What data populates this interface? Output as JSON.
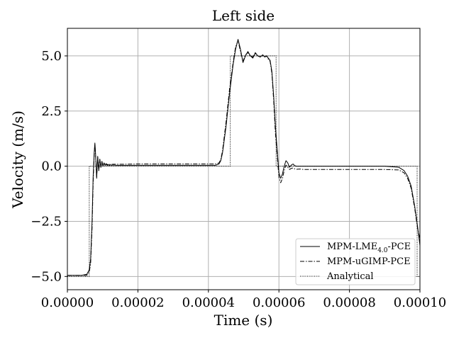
{
  "chart_data": {
    "type": "line",
    "title": "Left side",
    "xlabel": "Time (s)",
    "ylabel": "Velocity (m/s)",
    "xlim": [
      0,
      0.0001
    ],
    "ylim": [
      -5.6,
      6.25
    ],
    "xticks": [
      0,
      2e-05,
      4e-05,
      6e-05,
      8e-05,
      0.0001
    ],
    "xtick_labels": [
      "0.00000",
      "0.00002",
      "0.00004",
      "0.00006",
      "0.00008",
      "0.00010"
    ],
    "yticks": [
      -5.0,
      -2.5,
      0.0,
      2.5,
      5.0
    ],
    "ytick_labels": [
      "−5.0",
      "−2.5",
      "0.0",
      "2.5",
      "5.0"
    ],
    "grid": true,
    "legend_position": "lower-right",
    "series": [
      {
        "name": "MPM-LME4.0-PCE",
        "name_main": "MPM-LME",
        "name_sub": "4.0",
        "name_tail": "-PCE",
        "style": "solid",
        "color": "#000000",
        "x": [
          0,
          4e-06,
          5.5e-06,
          6.2e-06,
          6.6e-06,
          7e-06,
          7.3e-06,
          7.6e-06,
          7.8e-06,
          8e-06,
          8.3e-06,
          8.6e-06,
          8.9e-06,
          9.2e-06,
          9.5e-06,
          9.8e-06,
          1.01e-05,
          1.04e-05,
          1.07e-05,
          1.1e-05,
          1.13e-05,
          1.16e-05,
          1.19e-05,
          1.22e-05,
          1.25e-05,
          1.3e-05,
          1.4e-05,
          1.6e-05,
          2e-05,
          3e-05,
          4.2e-05,
          4.3e-05,
          4.35e-05,
          4.4e-05,
          4.5e-05,
          4.6e-05,
          4.7e-05,
          4.77e-05,
          4.84e-05,
          4.91e-05,
          4.98e-05,
          5.05e-05,
          5.12e-05,
          5.19e-05,
          5.26e-05,
          5.33e-05,
          5.4e-05,
          5.47e-05,
          5.54e-05,
          5.6e-05,
          5.65e-05,
          5.7e-05,
          5.75e-05,
          5.8e-05,
          5.85e-05,
          5.9e-05,
          6e-05,
          6.05e-05,
          6.1e-05,
          6.15e-05,
          6.2e-05,
          6.25e-05,
          6.3e-05,
          6.35e-05,
          6.4e-05,
          6.45e-05,
          6.5e-05,
          6.6e-05,
          6.7e-05,
          7e-05,
          8e-05,
          9e-05,
          9.4e-05,
          9.55e-05,
          9.65e-05,
          9.75e-05,
          9.85e-05,
          9.93e-05,
          0.0001
        ],
        "y": [
          -4.95,
          -4.95,
          -4.9,
          -4.7,
          -4.2,
          -2.5,
          -0.5,
          0.6,
          1.05,
          0.55,
          -0.55,
          0.45,
          -0.2,
          0.32,
          -0.05,
          0.22,
          0.0,
          0.15,
          0.03,
          0.1,
          0.03,
          0.07,
          0.03,
          0.06,
          0.04,
          0.05,
          0.04,
          0.04,
          0.04,
          0.04,
          0.04,
          0.1,
          0.25,
          0.6,
          1.8,
          3.3,
          4.6,
          5.3,
          5.75,
          5.3,
          4.7,
          5.0,
          5.2,
          5.0,
          4.9,
          5.15,
          5.0,
          4.95,
          5.05,
          4.95,
          5.0,
          4.9,
          4.8,
          4.3,
          3.2,
          1.8,
          -0.3,
          -0.55,
          -0.35,
          0.0,
          0.25,
          0.15,
          -0.05,
          0.05,
          0.1,
          0.02,
          0.0,
          0.0,
          0.0,
          0.0,
          0.0,
          0.0,
          -0.05,
          -0.2,
          -0.45,
          -0.9,
          -1.8,
          -2.7,
          -3.6
        ]
      },
      {
        "name": "MPM-uGIMP-PCE",
        "style": "dashdot",
        "color": "#000000",
        "x": [
          0,
          4e-06,
          5.5e-06,
          6.2e-06,
          6.6e-06,
          7e-06,
          7.3e-06,
          7.6e-06,
          7.8e-06,
          8e-06,
          8.3e-06,
          8.6e-06,
          8.9e-06,
          9.2e-06,
          9.5e-06,
          9.8e-06,
          1.01e-05,
          1.04e-05,
          1.07e-05,
          1.1e-05,
          1.13e-05,
          1.16e-05,
          1.19e-05,
          1.22e-05,
          1.25e-05,
          1.3e-05,
          1.4e-05,
          1.6e-05,
          2e-05,
          3e-05,
          4.2e-05,
          4.3e-05,
          4.35e-05,
          4.4e-05,
          4.5e-05,
          4.6e-05,
          4.7e-05,
          4.77e-05,
          4.84e-05,
          4.91e-05,
          4.98e-05,
          5.05e-05,
          5.12e-05,
          5.19e-05,
          5.26e-05,
          5.33e-05,
          5.4e-05,
          5.47e-05,
          5.54e-05,
          5.6e-05,
          5.65e-05,
          5.7e-05,
          5.75e-05,
          5.8e-05,
          5.85e-05,
          5.9e-05,
          6e-05,
          6.05e-05,
          6.1e-05,
          6.15e-05,
          6.2e-05,
          6.25e-05,
          6.3e-05,
          6.35e-05,
          6.4e-05,
          6.45e-05,
          6.5e-05,
          6.6e-05,
          6.7e-05,
          7e-05,
          8e-05,
          9e-05,
          9.4e-05,
          9.55e-05,
          9.65e-05,
          9.75e-05,
          9.85e-05,
          9.93e-05,
          0.0001
        ],
        "y": [
          -4.95,
          -4.95,
          -4.95,
          -4.8,
          -4.4,
          -2.8,
          -0.8,
          0.5,
          1.0,
          0.45,
          -0.5,
          0.4,
          -0.2,
          0.3,
          -0.05,
          0.2,
          0.02,
          0.15,
          0.05,
          0.12,
          0.06,
          0.1,
          0.07,
          0.1,
          0.08,
          0.09,
          0.09,
          0.09,
          0.1,
          0.1,
          0.1,
          0.15,
          0.3,
          0.7,
          2.0,
          3.5,
          4.7,
          5.4,
          5.7,
          5.2,
          4.75,
          5.05,
          5.15,
          5.0,
          4.95,
          5.1,
          5.0,
          4.95,
          5.0,
          4.95,
          5.0,
          4.85,
          4.75,
          4.2,
          3.0,
          1.5,
          -0.5,
          -0.75,
          -0.55,
          -0.2,
          0.05,
          -0.05,
          -0.15,
          -0.1,
          -0.08,
          -0.12,
          -0.14,
          -0.13,
          -0.15,
          -0.15,
          -0.15,
          -0.15,
          -0.17,
          -0.3,
          -0.55,
          -1.0,
          -1.9,
          -2.8,
          -3.3
        ]
      },
      {
        "name": "Analytical",
        "style": "dotted",
        "color": "#000000",
        "x": [
          0,
          6.2e-06,
          6.2e-06,
          4.62e-05,
          4.62e-05,
          5.92e-05,
          5.92e-05,
          9.92e-05,
          9.92e-05,
          0.0001
        ],
        "y": [
          -5.0,
          -5.0,
          0.0,
          0.0,
          5.0,
          5.0,
          0.0,
          0.0,
          -5.0,
          -5.0
        ]
      }
    ]
  }
}
